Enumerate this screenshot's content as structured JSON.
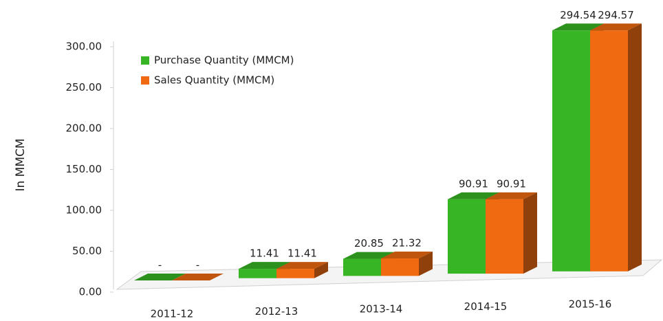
{
  "chart_data": {
    "type": "bar3d",
    "y_label": "In MMCM",
    "categories": [
      "2011-12",
      "2012-13",
      "2013-14",
      "2014-15",
      "2015-16"
    ],
    "series": [
      {
        "name": "Purchase Quantity (MMCM)",
        "color": "#38b524",
        "values": [
          0,
          11.41,
          20.85,
          90.91,
          294.54
        ],
        "value_labels": [
          "-",
          "11.41",
          "20.85",
          "90.91",
          "294.54"
        ]
      },
      {
        "name": "Sales Quantity (MMCM)",
        "color": "#f06a12",
        "values": [
          0,
          11.41,
          21.32,
          90.91,
          294.57
        ],
        "value_labels": [
          "-",
          "11.41",
          "21.32",
          "90.91",
          "294.57"
        ]
      }
    ],
    "ylim": [
      0,
      300
    ],
    "yticks": [
      {
        "value": 0,
        "label": "0.00"
      },
      {
        "value": 50,
        "label": "50.00"
      },
      {
        "value": 100,
        "label": "100.00"
      },
      {
        "value": 150,
        "label": "150.00"
      },
      {
        "value": 200,
        "label": "200.00"
      },
      {
        "value": 250,
        "label": "250.00"
      },
      {
        "value": 300,
        "label": "300.00"
      }
    ],
    "legend": "upper left"
  }
}
